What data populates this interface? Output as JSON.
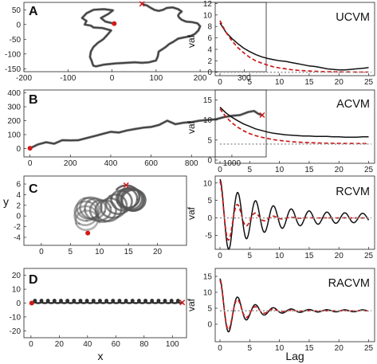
{
  "figure": {
    "axis_labels": {
      "trajectory_x": "x",
      "trajectory_y": "y",
      "acf_x": "Lag",
      "acf_y": "vaf"
    }
  },
  "chart_data": [
    {
      "panel": "A",
      "type": "line",
      "kind": "trajectory",
      "xlim": [
        -200,
        350
      ],
      "ylim": [
        -160,
        75
      ],
      "xticks": [
        -200,
        -100,
        0,
        100,
        200,
        300
      ],
      "yticks": [
        -150,
        -100,
        -50,
        0,
        50
      ],
      "start": [
        5,
        3
      ],
      "end": [
        68,
        70
      ],
      "series": [
        {
          "x": [
            5,
            -15,
            -25,
            -8,
            2,
            -18,
            -42,
            -58,
            -68,
            -58,
            -62,
            -48,
            -42,
            -22,
            -2,
            -10,
            -20,
            -32,
            -42,
            -48,
            -50,
            -46,
            -44,
            -42,
            -36,
            -18,
            8,
            32,
            52,
            68,
            84,
            100,
            104,
            106,
            114,
            122,
            130,
            140,
            150,
            162,
            170,
            180,
            188,
            196,
            200,
            194,
            182,
            168,
            158,
            152,
            150,
            152,
            158,
            150,
            138,
            124,
            116,
            106,
            96,
            86,
            80,
            72,
            68
          ],
          "y": [
            3,
            10,
            22,
            36,
            48,
            52,
            50,
            38,
            22,
            12,
            0,
            -4,
            -10,
            -12,
            -20,
            -34,
            -50,
            -62,
            -76,
            -92,
            -110,
            -124,
            -134,
            -140,
            -142,
            -136,
            -132,
            -130,
            -128,
            -130,
            -128,
            -122,
            -108,
            -92,
            -84,
            -76,
            -66,
            -58,
            -48,
            -44,
            -42,
            -38,
            -32,
            -20,
            -6,
            4,
            8,
            10,
            16,
            24,
            30,
            36,
            44,
            52,
            58,
            56,
            50,
            46,
            50,
            58,
            64,
            68,
            70
          ]
        }
      ]
    },
    {
      "panel": "B",
      "type": "line",
      "kind": "trajectory",
      "xlim": [
        -30,
        1170
      ],
      "ylim": [
        -60,
        420
      ],
      "xticks": [
        0,
        200,
        400,
        600,
        800,
        1000
      ],
      "yticks": [
        0,
        100,
        200,
        300,
        400
      ],
      "start": [
        0,
        2
      ],
      "end": [
        1150,
        240
      ],
      "series": [
        {
          "x": [
            0,
            40,
            80,
            120,
            160,
            200,
            240,
            280,
            320,
            360,
            400,
            440,
            480,
            520,
            560,
            600,
            640,
            680,
            720,
            760,
            800,
            840,
            880,
            920,
            960,
            1000,
            1040,
            1080,
            1110,
            1130,
            1150
          ],
          "y": [
            2,
            30,
            45,
            35,
            60,
            58,
            60,
            75,
            90,
            105,
            120,
            115,
            130,
            140,
            150,
            155,
            170,
            200,
            175,
            185,
            190,
            200,
            205,
            210,
            225,
            235,
            240,
            262,
            270,
            250,
            240
          ]
        }
      ]
    },
    {
      "panel": "C",
      "type": "line",
      "kind": "trajectory",
      "xlim": [
        -3,
        25
      ],
      "ylim": [
        -5.5,
        7.5
      ],
      "xticks": [
        0,
        5,
        10,
        15,
        20
      ],
      "yticks": [
        -4,
        -2,
        0,
        2,
        4,
        6
      ],
      "start": [
        8.0,
        -3.2
      ],
      "end": [
        14.6,
        5.8
      ],
      "series": [
        {
          "cx": [
            8.0,
            7.9,
            7.8,
            7.7,
            7.7,
            7.8,
            8.0,
            8.3,
            8.6,
            9.0,
            9.5,
            10.0,
            10.5,
            11.0,
            11.5,
            12.0,
            12.5,
            13.0,
            13.5,
            14.0,
            14.5,
            15.0,
            15.4,
            15.8,
            16.0,
            15.8,
            15.4,
            15.0,
            14.6
          ],
          "cy": [
            -1.2,
            -0.8,
            -0.3,
            0.2,
            0.7,
            1.1,
            1.4,
            1.5,
            1.5,
            1.4,
            1.2,
            1.0,
            0.9,
            0.9,
            1.0,
            1.3,
            1.7,
            2.1,
            2.5,
            2.9,
            3.1,
            3.2,
            3.1,
            3.0,
            2.9,
            3.0,
            3.3,
            3.6,
            3.8
          ],
          "radius": 2.0
        }
      ]
    },
    {
      "panel": "D",
      "type": "line",
      "kind": "trajectory",
      "xlim": [
        -5,
        110
      ],
      "ylim": [
        -25,
        25
      ],
      "xticks": [
        0,
        20,
        40,
        60,
        80,
        100
      ],
      "yticks": [
        -20,
        -10,
        0,
        10,
        20
      ],
      "start": [
        0.5,
        0
      ],
      "end": [
        107,
        0.4
      ],
      "series": [
        {
          "drift": 1.0,
          "radius": 1.2,
          "period_steps": 48
        }
      ]
    },
    {
      "panel": "UCVM",
      "type": "line",
      "kind": "acf",
      "xlim": [
        -0.8,
        26
      ],
      "ylim": [
        -0.6,
        12.2
      ],
      "xticks": [
        0,
        5,
        10,
        15,
        20,
        25
      ],
      "yticks": [
        0,
        2,
        4,
        6,
        8,
        10,
        12
      ],
      "reference": 0.0,
      "series": [
        {
          "role": "empirical",
          "color": "#111111",
          "style": "solid",
          "x": [
            0,
            1,
            2,
            3,
            4,
            5,
            6,
            7,
            8,
            9,
            10,
            11,
            12,
            13,
            14,
            15,
            16,
            17,
            18,
            19,
            20,
            21,
            22,
            23,
            24,
            25
          ],
          "y": [
            8.6,
            7.0,
            5.9,
            5.0,
            4.2,
            3.6,
            3.1,
            2.7,
            2.4,
            2.2,
            2.0,
            1.9,
            1.7,
            1.5,
            1.3,
            1.1,
            1.0,
            0.8,
            0.6,
            0.5,
            0.4,
            0.4,
            0.5,
            0.6,
            0.7,
            0.8
          ]
        },
        {
          "role": "model",
          "color": "#cc1a1a",
          "style": "dashed",
          "x": [
            0,
            1,
            2,
            3,
            4,
            5,
            6,
            7,
            8,
            9,
            10,
            11,
            12,
            13,
            14,
            15,
            16,
            17,
            18,
            19,
            20,
            21,
            22,
            23,
            24,
            25
          ],
          "y": [
            9.0,
            7.0,
            5.5,
            4.3,
            3.4,
            2.6,
            2.0,
            1.6,
            1.25,
            0.95,
            0.75,
            0.6,
            0.45,
            0.35,
            0.28,
            0.22,
            0.17,
            0.13,
            0.1,
            0.08,
            0.06,
            0.05,
            0.04,
            0.03,
            0.03,
            0.02
          ]
        },
        {
          "role": "reference",
          "color": "#9a9a9a",
          "style": "dotted",
          "y": 0.0
        }
      ]
    },
    {
      "panel": "ACVM",
      "type": "line",
      "kind": "acf",
      "xlim": [
        -0.8,
        26
      ],
      "ylim": [
        -0.8,
        17.5
      ],
      "xticks": [
        0,
        5,
        10,
        15,
        20,
        25
      ],
      "yticks": [
        0,
        5,
        10,
        15
      ],
      "reference": 4.0,
      "series": [
        {
          "role": "empirical",
          "color": "#111111",
          "style": "solid",
          "x": [
            0,
            1,
            2,
            3,
            4,
            5,
            6,
            7,
            8,
            9,
            10,
            11,
            12,
            13,
            14,
            15,
            16,
            17,
            18,
            19,
            20,
            21,
            22,
            23,
            24,
            25
          ],
          "y": [
            13.2,
            11.8,
            10.7,
            9.8,
            9.0,
            8.4,
            7.8,
            7.4,
            7.0,
            6.7,
            6.5,
            6.3,
            6.2,
            6.1,
            6.0,
            6.0,
            5.9,
            5.9,
            5.9,
            5.8,
            5.8,
            5.7,
            5.7,
            5.7,
            5.8,
            5.8
          ]
        },
        {
          "role": "model",
          "color": "#cc1a1a",
          "style": "dashed",
          "x": [
            0,
            1,
            2,
            3,
            4,
            5,
            6,
            7,
            8,
            9,
            10,
            11,
            12,
            13,
            14,
            15,
            16,
            17,
            18,
            19,
            20,
            21,
            22,
            23,
            24,
            25
          ],
          "y": [
            12.8,
            10.8,
            9.3,
            8.2,
            7.3,
            6.6,
            6.1,
            5.7,
            5.4,
            5.1,
            4.9,
            4.75,
            4.6,
            4.5,
            4.42,
            4.36,
            4.3,
            4.26,
            4.22,
            4.2,
            4.18,
            4.16,
            4.15,
            4.14,
            4.13,
            4.12
          ]
        },
        {
          "role": "reference",
          "color": "#9a9a9a",
          "style": "dotted",
          "y": 4.0
        }
      ]
    },
    {
      "panel": "RCVM",
      "type": "line",
      "kind": "acf",
      "xlim": [
        -0.8,
        26
      ],
      "ylim": [
        -9,
        12
      ],
      "xticks": [
        0,
        5,
        10,
        15,
        20,
        25
      ],
      "yticks": [
        -5,
        0,
        5,
        10
      ],
      "reference": 0.0,
      "series": [
        {
          "role": "empirical",
          "color": "#111111",
          "style": "solid",
          "amp": 10.0,
          "decay": 0.16,
          "floor": 1.1,
          "period": 3.0,
          "offset": 0.0
        },
        {
          "role": "model",
          "color": "#cc1a1a",
          "style": "dashed",
          "amp": 10.5,
          "decay": 0.34,
          "floor": 0.0,
          "period": 3.0,
          "offset": 0.0
        },
        {
          "role": "reference",
          "color": "#9a9a9a",
          "style": "dotted",
          "y": 0.0
        }
      ]
    },
    {
      "panel": "RACVM",
      "type": "line",
      "kind": "acf",
      "xlim": [
        -0.8,
        26
      ],
      "ylim": [
        -5.5,
        17.5
      ],
      "xticks": [
        0,
        5,
        10,
        15,
        20,
        25
      ],
      "yticks": [
        0,
        5,
        10,
        15
      ],
      "reference": 4.2,
      "series": [
        {
          "role": "empirical",
          "color": "#111111",
          "style": "solid",
          "amp": 9.8,
          "decay": 0.3,
          "floor": 0.3,
          "period": 3.0,
          "offset": 4.2
        },
        {
          "role": "model",
          "color": "#cc1a1a",
          "style": "dashed",
          "amp": 9.6,
          "decay": 0.34,
          "floor": 0.0,
          "period": 3.0,
          "offset": 4.2
        },
        {
          "role": "reference",
          "color": "#9a9a9a",
          "style": "dotted",
          "y": 4.2
        }
      ]
    }
  ]
}
